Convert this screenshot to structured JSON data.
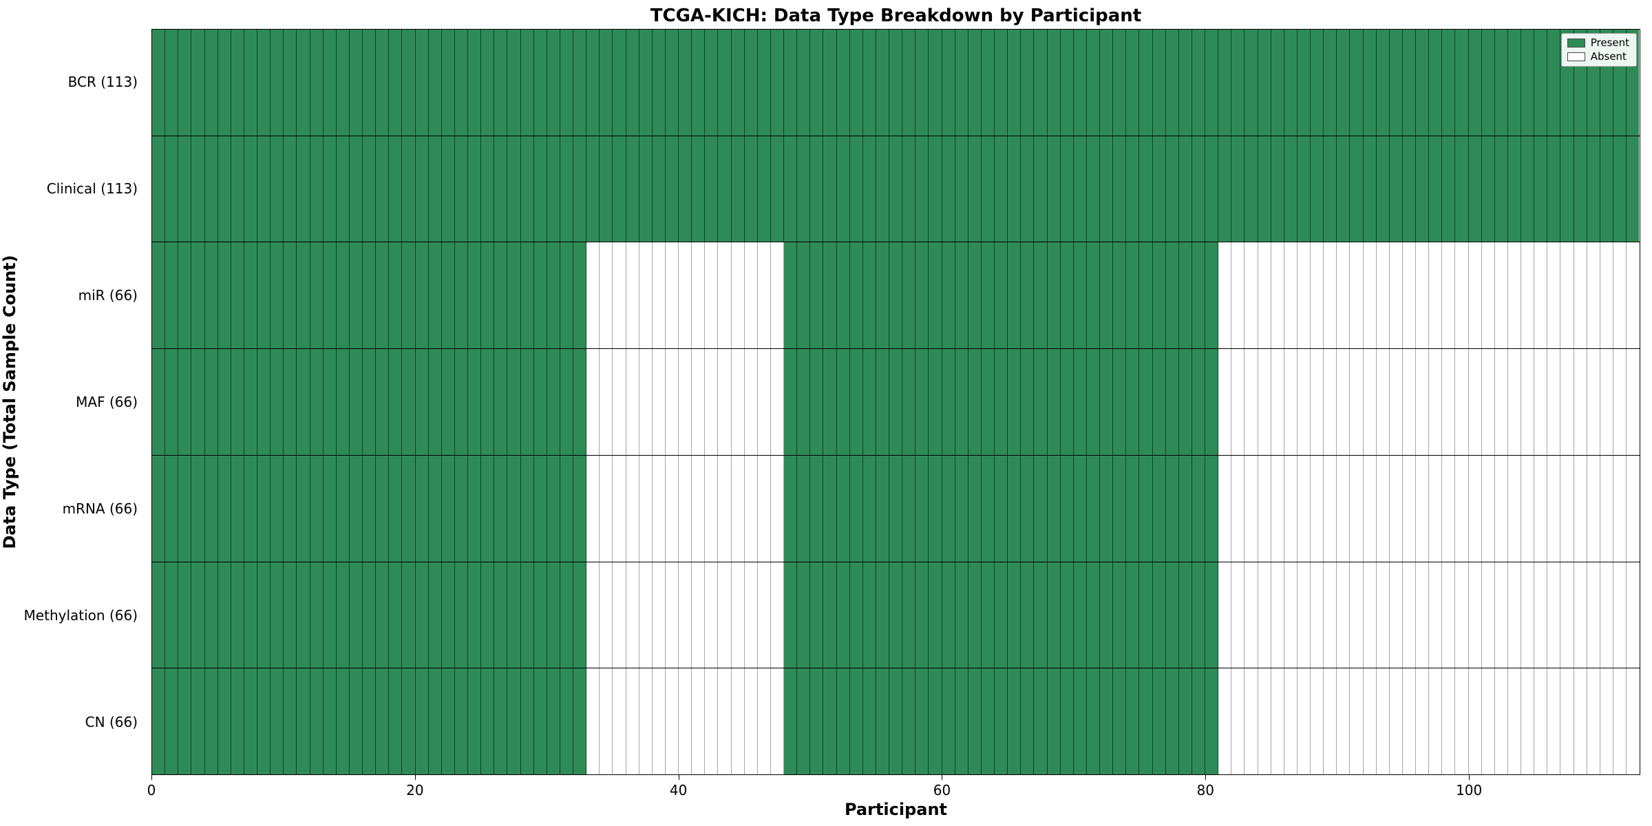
{
  "chart_data": {
    "type": "heatmap",
    "title": "TCGA-KICH: Data Type Breakdown by Participant",
    "xlabel": "Participant",
    "ylabel": "Data Type (Total Sample Count)",
    "n_participants": 113,
    "x_ticks": [
      0,
      20,
      40,
      60,
      80,
      100
    ],
    "x_range": [
      0,
      113
    ],
    "legend": [
      {
        "label": "Present",
        "color": "#2e8b57"
      },
      {
        "label": "Absent",
        "color": "#ffffff"
      }
    ],
    "rows": [
      {
        "label": "BCR (113)",
        "count": 113,
        "present_ranges": [
          [
            0,
            113
          ]
        ]
      },
      {
        "label": "Clinical (113)",
        "count": 113,
        "present_ranges": [
          [
            0,
            113
          ]
        ]
      },
      {
        "label": "miR (66)",
        "count": 66,
        "present_ranges": [
          [
            0,
            33
          ],
          [
            48,
            81
          ]
        ]
      },
      {
        "label": "MAF (66)",
        "count": 66,
        "present_ranges": [
          [
            0,
            33
          ],
          [
            48,
            81
          ]
        ]
      },
      {
        "label": "mRNA (66)",
        "count": 66,
        "present_ranges": [
          [
            0,
            33
          ],
          [
            48,
            81
          ]
        ]
      },
      {
        "label": "Methylation (66)",
        "count": 66,
        "present_ranges": [
          [
            0,
            33
          ],
          [
            48,
            81
          ]
        ]
      },
      {
        "label": "CN (66)",
        "count": 66,
        "present_ranges": [
          [
            0,
            33
          ],
          [
            48,
            81
          ]
        ]
      }
    ],
    "colors": {
      "present": "#2e8b57",
      "absent": "#ffffff",
      "grid": "#000000"
    },
    "legend_position": "upper right",
    "grid": true
  }
}
